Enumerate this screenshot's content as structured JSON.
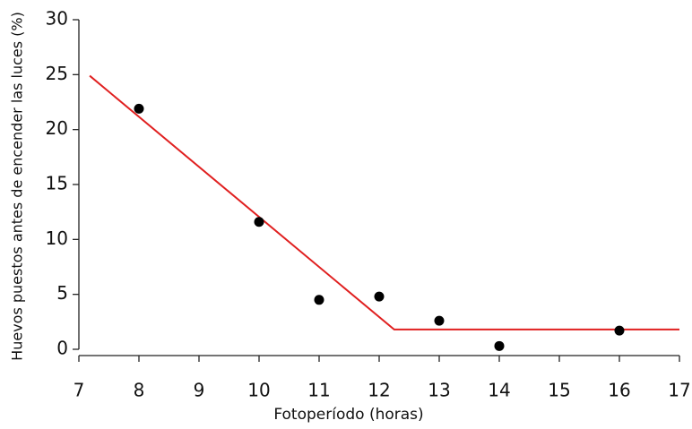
{
  "chart_data": {
    "type": "scatter",
    "xlabel": "Fotoperíodo (horas)",
    "ylabel": "Huevos puestos antes de encender las luces (%)",
    "x": [
      8,
      10,
      11,
      12,
      13,
      14,
      16
    ],
    "values": [
      21.9,
      11.6,
      4.5,
      4.8,
      2.6,
      0.3,
      1.7
    ],
    "color": "#000000",
    "line": {
      "x": [
        7.18,
        12.25,
        17
      ],
      "values": [
        24.9,
        1.8,
        1.8
      ],
      "color": "#e02020"
    },
    "xlim": [
      7,
      17
    ],
    "xticks": [
      7,
      8,
      9,
      10,
      11,
      12,
      13,
      14,
      15,
      16,
      17
    ],
    "ylim": [
      0,
      30
    ],
    "yticks": [
      0,
      5,
      10,
      15,
      20,
      25,
      30
    ]
  }
}
